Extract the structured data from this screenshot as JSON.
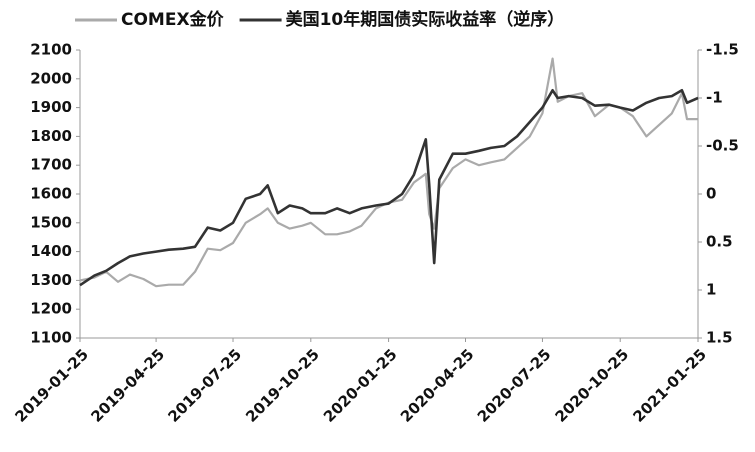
{
  "chart_data": {
    "type": "line",
    "x": [
      "2019-01-25",
      "2019-02-11",
      "2019-02-25",
      "2019-03-11",
      "2019-03-25",
      "2019-04-10",
      "2019-04-25",
      "2019-05-10",
      "2019-05-27",
      "2019-06-10",
      "2019-06-25",
      "2019-07-10",
      "2019-07-25",
      "2019-08-09",
      "2019-08-26",
      "2019-09-04",
      "2019-09-16",
      "2019-09-30",
      "2019-10-15",
      "2019-10-25",
      "2019-11-11",
      "2019-11-25",
      "2019-12-10",
      "2019-12-24",
      "2020-01-10",
      "2020-01-25",
      "2020-02-10",
      "2020-02-24",
      "2020-03-09",
      "2020-03-13",
      "2020-03-19",
      "2020-03-25",
      "2020-04-10",
      "2020-04-25",
      "2020-05-11",
      "2020-05-25",
      "2020-06-10",
      "2020-06-25",
      "2020-07-10",
      "2020-07-25",
      "2020-08-06",
      "2020-08-12",
      "2020-08-25",
      "2020-09-10",
      "2020-09-25",
      "2020-10-12",
      "2020-10-25",
      "2020-11-09",
      "2020-11-25",
      "2020-12-10",
      "2020-12-25",
      "2021-01-06",
      "2021-01-12",
      "2021-01-25"
    ],
    "series": [
      {
        "name": "COMEX金价",
        "color": "#aaaaaa",
        "axis": "y",
        "values": [
          1300,
          1310,
          1330,
          1295,
          1320,
          1305,
          1280,
          1285,
          1285,
          1330,
          1410,
          1405,
          1430,
          1500,
          1530,
          1550,
          1500,
          1480,
          1490,
          1500,
          1460,
          1460,
          1470,
          1490,
          1550,
          1570,
          1580,
          1640,
          1670,
          1530,
          1480,
          1620,
          1690,
          1720,
          1700,
          1710,
          1720,
          1760,
          1800,
          1880,
          2070,
          1920,
          1940,
          1950,
          1870,
          1910,
          1900,
          1870,
          1800,
          1840,
          1880,
          1950,
          1860,
          1860
        ]
      },
      {
        "name": "美国10年期国债实际收益率（逆序）",
        "color": "#333333",
        "axis": "y2",
        "values": [
          0.95,
          0.85,
          0.8,
          0.72,
          0.65,
          0.62,
          0.6,
          0.58,
          0.57,
          0.55,
          0.35,
          0.38,
          0.3,
          0.05,
          0.0,
          -0.09,
          0.2,
          0.12,
          0.15,
          0.2,
          0.2,
          0.15,
          0.2,
          0.15,
          0.12,
          0.1,
          0.0,
          -0.2,
          -0.57,
          -0.1,
          0.72,
          -0.15,
          -0.42,
          -0.42,
          -0.45,
          -0.48,
          -0.5,
          -0.6,
          -0.75,
          -0.9,
          -1.08,
          -1.0,
          -1.02,
          -1.0,
          -0.92,
          -0.93,
          -0.9,
          -0.87,
          -0.95,
          -1.0,
          -1.02,
          -1.08,
          -0.95,
          -1.0
        ]
      }
    ],
    "xlim": [
      "2019-01-25",
      "2021-01-25"
    ],
    "xticks": [
      "2019-01-25",
      "2019-04-25",
      "2019-07-25",
      "2019-10-25",
      "2020-01-25",
      "2020-04-25",
      "2020-07-25",
      "2020-10-25",
      "2021-01-25"
    ],
    "ylim": [
      1100,
      2100
    ],
    "yticks": [
      1100,
      1200,
      1300,
      1400,
      1500,
      1600,
      1700,
      1800,
      1900,
      2000,
      2100
    ],
    "y2lim": [
      1.5,
      -1.5
    ],
    "y2ticks": [
      -1.5,
      -1,
      -0.5,
      0,
      0.5,
      1,
      1.5
    ],
    "grid": false,
    "legend": "top"
  }
}
